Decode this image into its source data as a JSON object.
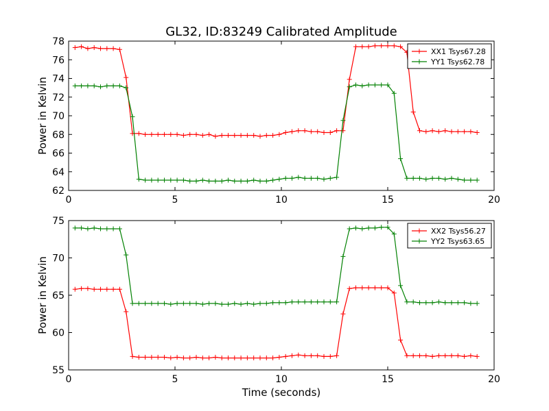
{
  "chart_data": [
    {
      "type": "line",
      "title": "GL32, ID:83249 Calibrated Amplitude",
      "xlabel": "",
      "ylabel": "Power in Kelvin",
      "xlim": [
        0,
        20
      ],
      "ylim": [
        62,
        78
      ],
      "xticks": [
        "0",
        "5",
        "10",
        "15",
        "20"
      ],
      "yticks": [
        "62",
        "64",
        "66",
        "68",
        "70",
        "72",
        "74",
        "76",
        "78"
      ],
      "legend_position": "top-right",
      "x": [
        0.3,
        0.6,
        0.9,
        1.2,
        1.5,
        1.8,
        2.1,
        2.4,
        2.7,
        3.0,
        3.3,
        3.6,
        3.9,
        4.2,
        4.5,
        4.8,
        5.1,
        5.4,
        5.7,
        6.0,
        6.3,
        6.6,
        6.9,
        7.2,
        7.5,
        7.8,
        8.1,
        8.4,
        8.7,
        9.0,
        9.3,
        9.6,
        9.9,
        10.2,
        10.5,
        10.8,
        11.1,
        11.4,
        11.7,
        12.0,
        12.3,
        12.6,
        12.9,
        13.2,
        13.5,
        13.8,
        14.1,
        14.4,
        14.7,
        15.0,
        15.3,
        15.6,
        15.9,
        16.2,
        16.5,
        16.8,
        17.1,
        17.4,
        17.7,
        18.0,
        18.3,
        18.6,
        18.9,
        19.2
      ],
      "series": [
        {
          "name": "XX1 Tsys67.28",
          "color": "#ff0000",
          "values": [
            77.3,
            77.4,
            77.2,
            77.3,
            77.2,
            77.2,
            77.2,
            77.1,
            74.1,
            68.1,
            68.1,
            68.0,
            68.0,
            68.0,
            68.0,
            68.0,
            68.0,
            67.9,
            68.0,
            68.0,
            67.9,
            68.0,
            67.8,
            67.9,
            67.9,
            67.9,
            67.9,
            67.9,
            67.9,
            67.8,
            67.9,
            67.9,
            68.0,
            68.2,
            68.3,
            68.4,
            68.4,
            68.3,
            68.3,
            68.2,
            68.2,
            68.4,
            68.4,
            73.9,
            77.4,
            77.4,
            77.4,
            77.5,
            77.5,
            77.5,
            77.5,
            77.4,
            76.8,
            70.4,
            68.4,
            68.3,
            68.4,
            68.3,
            68.4,
            68.3,
            68.3,
            68.3,
            68.3,
            68.2
          ]
        },
        {
          "name": "YY1 Tsys62.78",
          "color": "#008000",
          "values": [
            73.2,
            73.2,
            73.2,
            73.2,
            73.1,
            73.2,
            73.2,
            73.2,
            73.0,
            69.9,
            63.2,
            63.1,
            63.1,
            63.1,
            63.1,
            63.1,
            63.1,
            63.1,
            63.0,
            63.0,
            63.1,
            63.0,
            63.0,
            63.0,
            63.1,
            63.0,
            63.0,
            63.0,
            63.1,
            63.0,
            63.0,
            63.1,
            63.2,
            63.3,
            63.3,
            63.4,
            63.3,
            63.3,
            63.3,
            63.2,
            63.3,
            63.4,
            69.5,
            73.1,
            73.3,
            73.2,
            73.3,
            73.3,
            73.3,
            73.3,
            72.4,
            65.4,
            63.3,
            63.3,
            63.3,
            63.2,
            63.3,
            63.3,
            63.2,
            63.3,
            63.2,
            63.1,
            63.1,
            63.1
          ]
        }
      ]
    },
    {
      "type": "line",
      "title": "",
      "xlabel": "Time (seconds)",
      "ylabel": "Power in Kelvin",
      "xlim": [
        0,
        20
      ],
      "ylim": [
        55,
        75
      ],
      "xticks": [
        "0",
        "5",
        "10",
        "15",
        "20"
      ],
      "yticks": [
        "55",
        "60",
        "65",
        "70",
        "75"
      ],
      "legend_position": "top-right",
      "x": [
        0.3,
        0.6,
        0.9,
        1.2,
        1.5,
        1.8,
        2.1,
        2.4,
        2.7,
        3.0,
        3.3,
        3.6,
        3.9,
        4.2,
        4.5,
        4.8,
        5.1,
        5.4,
        5.7,
        6.0,
        6.3,
        6.6,
        6.9,
        7.2,
        7.5,
        7.8,
        8.1,
        8.4,
        8.7,
        9.0,
        9.3,
        9.6,
        9.9,
        10.2,
        10.5,
        10.8,
        11.1,
        11.4,
        11.7,
        12.0,
        12.3,
        12.6,
        12.9,
        13.2,
        13.5,
        13.8,
        14.1,
        14.4,
        14.7,
        15.0,
        15.3,
        15.6,
        15.9,
        16.2,
        16.5,
        16.8,
        17.1,
        17.4,
        17.7,
        18.0,
        18.3,
        18.6,
        18.9,
        19.2
      ],
      "series": [
        {
          "name": "XX2 Tsys56.27",
          "color": "#ff0000",
          "values": [
            65.8,
            65.9,
            65.9,
            65.8,
            65.8,
            65.8,
            65.8,
            65.8,
            62.8,
            56.8,
            56.7,
            56.7,
            56.7,
            56.7,
            56.7,
            56.6,
            56.7,
            56.6,
            56.6,
            56.7,
            56.6,
            56.6,
            56.7,
            56.6,
            56.6,
            56.6,
            56.6,
            56.6,
            56.6,
            56.6,
            56.6,
            56.6,
            56.7,
            56.8,
            56.9,
            57.0,
            56.9,
            56.9,
            56.9,
            56.8,
            56.8,
            56.9,
            62.5,
            65.9,
            66.0,
            66.0,
            66.0,
            66.0,
            66.0,
            66.0,
            65.3,
            59.0,
            56.9,
            56.9,
            56.9,
            56.9,
            56.8,
            56.9,
            56.9,
            56.9,
            56.9,
            56.8,
            56.9,
            56.8
          ]
        },
        {
          "name": "YY2 Tsys63.65",
          "color": "#008000",
          "values": [
            74.0,
            74.0,
            73.9,
            74.0,
            73.9,
            73.9,
            73.9,
            73.9,
            70.4,
            63.9,
            63.9,
            63.9,
            63.9,
            63.9,
            63.9,
            63.8,
            63.9,
            63.9,
            63.9,
            63.9,
            63.8,
            63.9,
            63.9,
            63.8,
            63.8,
            63.9,
            63.8,
            63.9,
            63.8,
            63.9,
            63.9,
            64.0,
            64.0,
            64.0,
            64.1,
            64.1,
            64.1,
            64.1,
            64.1,
            64.1,
            64.1,
            64.1,
            70.2,
            73.9,
            74.0,
            73.9,
            74.0,
            74.0,
            74.1,
            74.1,
            73.2,
            66.3,
            64.1,
            64.1,
            64.0,
            64.0,
            64.0,
            64.1,
            64.0,
            64.0,
            64.0,
            64.0,
            63.9,
            63.9
          ]
        }
      ]
    }
  ]
}
